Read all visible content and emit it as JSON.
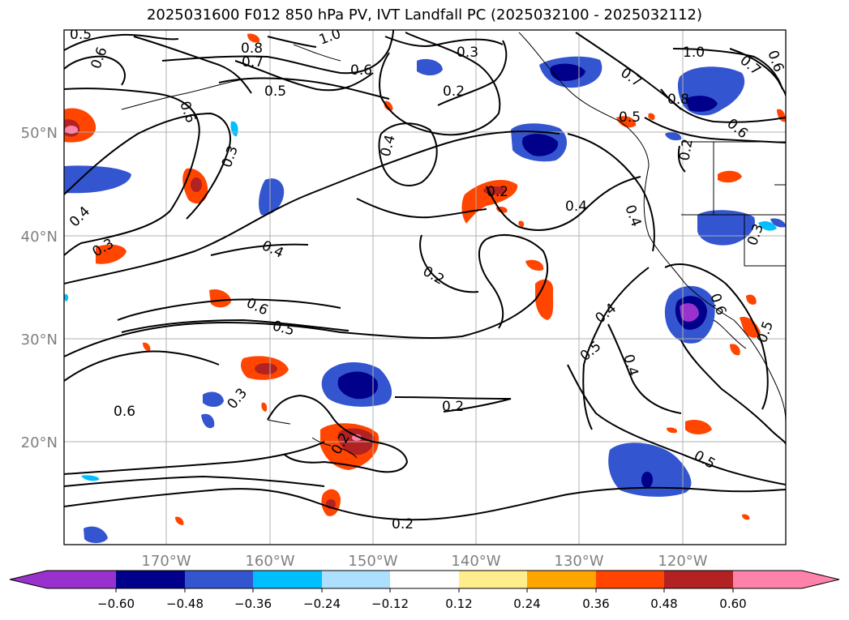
{
  "title": "2025031600 F012 850 hPa PV, IVT Landfall PC (2025032100 - 2025032112)",
  "axes": {
    "lat_labels": [
      "50°N",
      "40°N",
      "30°N",
      "20°N"
    ],
    "lon_labels": [
      "170°W",
      "160°W",
      "150°W",
      "140°W",
      "130°W",
      "120°W"
    ],
    "tick_color": "#808080"
  },
  "colorbar": {
    "colors": [
      "#9932CC",
      "#00008B",
      "#3455D0",
      "#00BFFF",
      "#ADDFFF",
      "#FFFFFF",
      "#FFEC8B",
      "#FFA500",
      "#FF4500",
      "#B22222",
      "#FF82AB"
    ],
    "tick_labels": [
      "−0.60",
      "−0.48",
      "−0.36",
      "−0.24",
      "−0.12",
      "0.12",
      "0.24",
      "0.36",
      "0.48",
      "0.60"
    ]
  },
  "contour_labels": [
    "0.5",
    "0.6",
    "1.0",
    "0.8",
    "0.7",
    "0.6",
    "0.5",
    "0.3",
    "0.2",
    "0.6",
    "0.3",
    "0.4",
    "0.2",
    "0.4",
    "0.3",
    "0.4",
    "0.4",
    "0.6",
    "0.5",
    "0.2",
    "0.3",
    "0.6",
    "0.2",
    "0.2",
    "0.5",
    "0.4",
    "0.4",
    "0.5",
    "0.4",
    "0.5",
    "1.0",
    "0.7",
    "0.6",
    "0.7",
    "0.8",
    "0.6",
    "0.6",
    "0.3",
    "0.5",
    "0.2",
    "0.2"
  ]
}
